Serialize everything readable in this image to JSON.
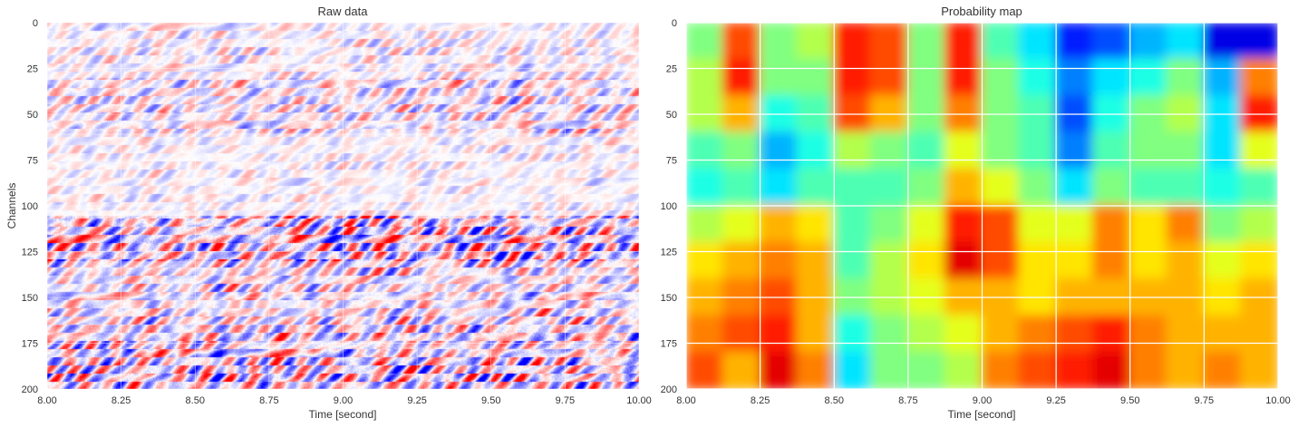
{
  "chart_data": [
    {
      "type": "heatmap",
      "title": "Raw data",
      "xlabel": "Time [second]",
      "ylabel": "Channels",
      "xlim": [
        8.0,
        10.0
      ],
      "ylim": [
        200,
        0
      ],
      "xticks": [
        "8.00",
        "8.25",
        "8.50",
        "8.75",
        "9.00",
        "9.25",
        "9.50",
        "9.75",
        "10.00"
      ],
      "yticks": [
        "0",
        "25",
        "50",
        "75",
        "100",
        "125",
        "150",
        "175",
        "200"
      ],
      "colormap": "bwr",
      "grid": true,
      "amplitude_bands": [
        {
          "channels": [
            0,
            30
          ],
          "amplitude": 0.3
        },
        {
          "channels": [
            30,
            50
          ],
          "amplitude": 0.5
        },
        {
          "channels": [
            50,
            60
          ],
          "amplitude": 0.45
        },
        {
          "channels": [
            60,
            105
          ],
          "amplitude": 0.25
        },
        {
          "channels": [
            105,
            130
          ],
          "amplitude": 0.9
        },
        {
          "channels": [
            130,
            165
          ],
          "amplitude": 0.55
        },
        {
          "channels": [
            165,
            185
          ],
          "amplitude": 0.75
        },
        {
          "channels": [
            185,
            200
          ],
          "amplitude": 0.85
        }
      ]
    },
    {
      "type": "heatmap",
      "title": "Probability map",
      "xlabel": "Time [second]",
      "ylabel": "",
      "xlim": [
        8.0,
        10.0
      ],
      "ylim": [
        200,
        0
      ],
      "xticks": [
        "8.00",
        "8.25",
        "8.50",
        "8.75",
        "9.00",
        "9.25",
        "9.50",
        "9.75",
        "10.00"
      ],
      "yticks": [
        "0",
        "25",
        "50",
        "75",
        "100",
        "125",
        "150",
        "175",
        "200"
      ],
      "colormap": "jet",
      "grid": true,
      "row_channels": [
        0,
        20,
        40,
        60,
        80,
        100,
        120,
        140,
        160,
        180
      ],
      "col_times": [
        8.0,
        8.125,
        8.25,
        8.375,
        8.5,
        8.625,
        8.75,
        8.875,
        9.0,
        9.125,
        9.25,
        9.375,
        9.5,
        9.625,
        9.75,
        9.875
      ],
      "values": [
        [
          0.5,
          0.8,
          0.5,
          0.55,
          0.85,
          0.8,
          0.5,
          0.85,
          0.45,
          0.35,
          0.15,
          0.2,
          0.3,
          0.35,
          0.1,
          0.1
        ],
        [
          0.55,
          0.85,
          0.5,
          0.5,
          0.85,
          0.8,
          0.5,
          0.85,
          0.5,
          0.4,
          0.25,
          0.35,
          0.4,
          0.5,
          0.3,
          0.75
        ],
        [
          0.55,
          0.7,
          0.4,
          0.45,
          0.8,
          0.7,
          0.5,
          0.75,
          0.5,
          0.45,
          0.2,
          0.4,
          0.5,
          0.55,
          0.35,
          0.85
        ],
        [
          0.45,
          0.5,
          0.3,
          0.4,
          0.55,
          0.5,
          0.45,
          0.6,
          0.5,
          0.45,
          0.25,
          0.45,
          0.5,
          0.5,
          0.35,
          0.6
        ],
        [
          0.4,
          0.45,
          0.35,
          0.45,
          0.45,
          0.45,
          0.5,
          0.7,
          0.6,
          0.5,
          0.35,
          0.5,
          0.45,
          0.45,
          0.4,
          0.45
        ],
        [
          0.55,
          0.6,
          0.7,
          0.65,
          0.45,
          0.5,
          0.6,
          0.85,
          0.8,
          0.6,
          0.6,
          0.75,
          0.65,
          0.75,
          0.5,
          0.55
        ],
        [
          0.65,
          0.7,
          0.75,
          0.7,
          0.45,
          0.55,
          0.65,
          0.9,
          0.8,
          0.65,
          0.65,
          0.75,
          0.65,
          0.7,
          0.6,
          0.65
        ],
        [
          0.7,
          0.75,
          0.8,
          0.7,
          0.5,
          0.55,
          0.6,
          0.7,
          0.7,
          0.65,
          0.7,
          0.7,
          0.7,
          0.7,
          0.65,
          0.7
        ],
        [
          0.75,
          0.8,
          0.85,
          0.7,
          0.4,
          0.5,
          0.55,
          0.6,
          0.7,
          0.75,
          0.8,
          0.85,
          0.75,
          0.7,
          0.7,
          0.7
        ],
        [
          0.8,
          0.7,
          0.9,
          0.75,
          0.35,
          0.5,
          0.5,
          0.55,
          0.75,
          0.8,
          0.85,
          0.9,
          0.75,
          0.7,
          0.75,
          0.7
        ]
      ]
    }
  ]
}
